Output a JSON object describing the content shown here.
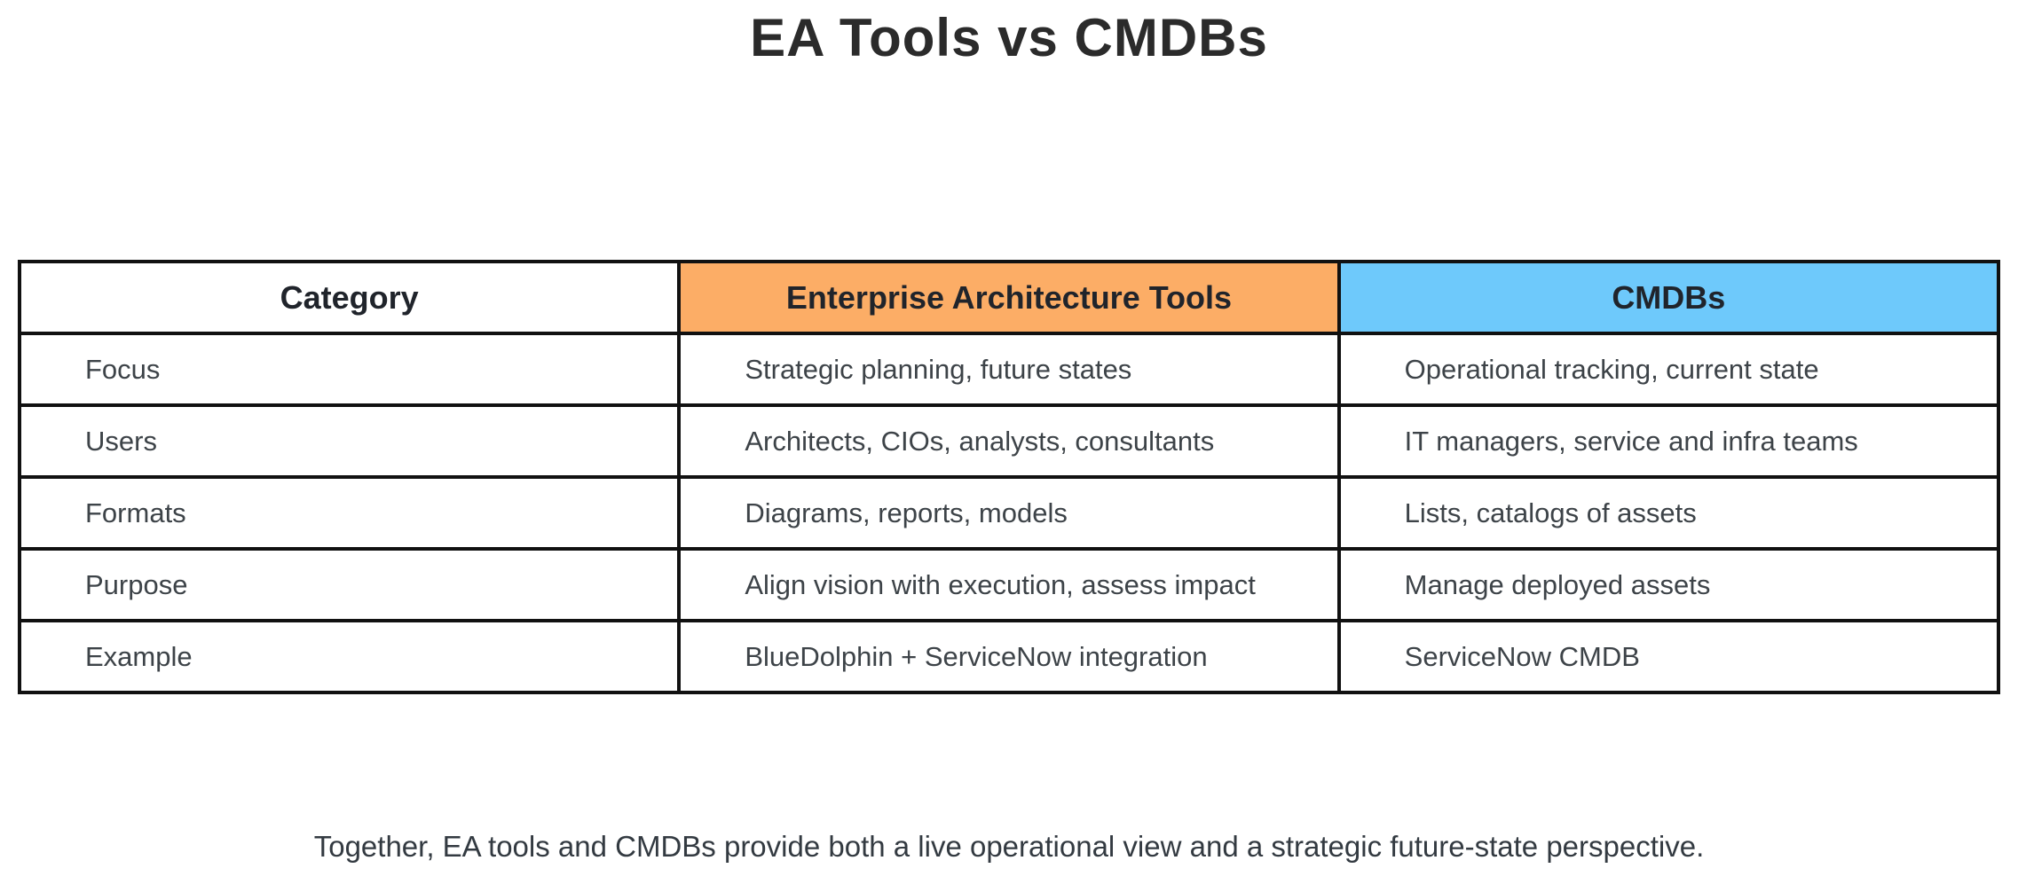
{
  "chart_data": {
    "type": "table",
    "title": "EA Tools vs CMDBs",
    "columns": [
      {
        "label": "Category",
        "bg": "#ffffff",
        "text_color": "#20242b"
      },
      {
        "label": "Enterprise Architecture Tools",
        "bg": "#fcad66",
        "text_color": "#20242b"
      },
      {
        "label": "CMDBs",
        "bg": "#6ec9fb",
        "text_color": "#20242b"
      }
    ],
    "rows": [
      {
        "category": "Focus",
        "ea_tools": "Strategic planning, future states",
        "cmdbs": "Operational tracking, current state"
      },
      {
        "category": "Users",
        "ea_tools": "Architects, CIOs, analysts, consultants",
        "cmdbs": "IT managers, service and infra teams"
      },
      {
        "category": "Formats",
        "ea_tools": "Diagrams, reports, models",
        "cmdbs": "Lists, catalogs of assets"
      },
      {
        "category": "Purpose",
        "ea_tools": "Align vision with execution, assess impact",
        "cmdbs": "Manage deployed assets"
      },
      {
        "category": "Example",
        "ea_tools": "BlueDolphin + ServiceNow integration",
        "cmdbs": "ServiceNow CMDB"
      }
    ],
    "caption": "Together, EA tools and CMDBs provide both a live operational view and a strategic future-state perspective.",
    "layout": {
      "grid_line_color": "#111111",
      "background": "#ffffff",
      "body_text_color": "#3d4348",
      "title_color": "#2b2b2b",
      "columns_equal_width": true,
      "legend": "none"
    }
  }
}
